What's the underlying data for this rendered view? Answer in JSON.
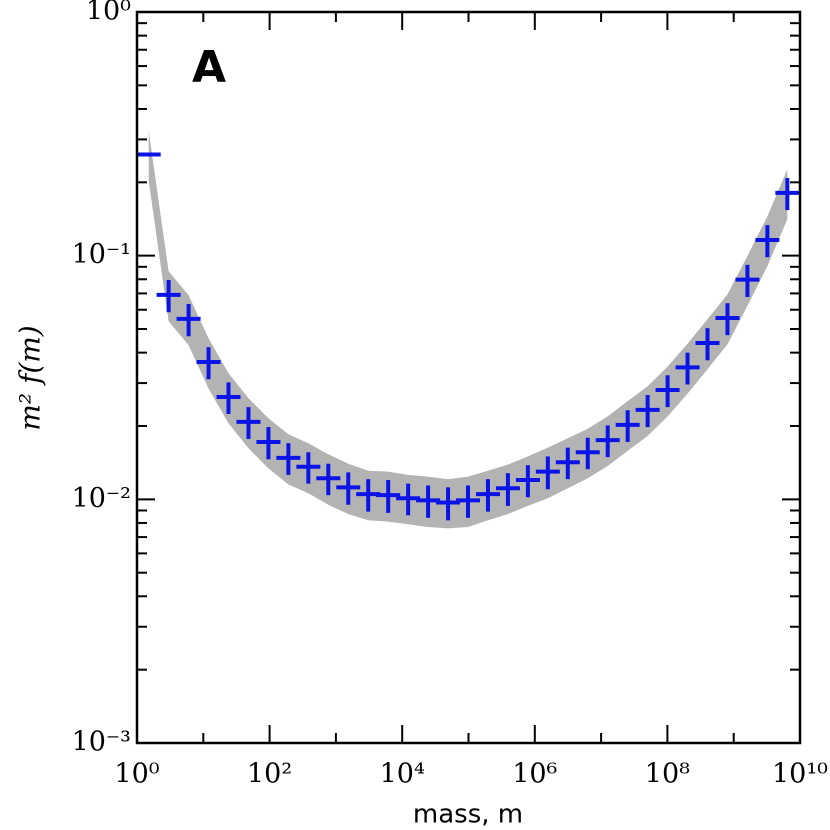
{
  "chart_data": {
    "type": "errorbar",
    "panel_label": "A",
    "xlabel": "mass, m",
    "ylabel": "m² f(m)",
    "log_x": true,
    "log_y": true,
    "xlim": [
      1,
      10000000000
    ],
    "ylim": [
      0.001,
      1
    ],
    "xticks": [
      {
        "value": 1,
        "label": "10⁰"
      },
      {
        "value": 100,
        "label": "10²"
      },
      {
        "value": 10000,
        "label": "10⁴"
      },
      {
        "value": 1000000,
        "label": "10⁶"
      },
      {
        "value": 100000000,
        "label": "10⁸"
      },
      {
        "value": 10000000000,
        "label": "10¹⁰"
      }
    ],
    "xminor": [
      10,
      1000,
      100000,
      10000000,
      1000000000
    ],
    "yticks": [
      {
        "value": 0.001,
        "label": "10⁻³"
      },
      {
        "value": 0.01,
        "label": "10⁻²"
      },
      {
        "value": 0.1,
        "label": "10⁻¹"
      },
      {
        "value": 1,
        "label": "10⁰"
      }
    ],
    "yminor": [
      0.002,
      0.003,
      0.004,
      0.005,
      0.006,
      0.007,
      0.008,
      0.009,
      0.02,
      0.03,
      0.04,
      0.05,
      0.06,
      0.07,
      0.08,
      0.09,
      0.2,
      0.3,
      0.4,
      0.5,
      0.6,
      0.7,
      0.8,
      0.9
    ],
    "color": "#0a14e6",
    "band_color": "#b3b3b3",
    "x": [
      1.5,
      3,
      6,
      12,
      24,
      48,
      96,
      192,
      384,
      768,
      1536,
      3072,
      6144,
      12288,
      24576,
      49152,
      98304,
      196608,
      393216,
      786432,
      1572864,
      3145728,
      6291456,
      12582912,
      25165824,
      50331648,
      100663296,
      201326592,
      402653184,
      805306368,
      1610612736,
      3221225472,
      6442450944
    ],
    "values": [
      0.26,
      0.069,
      0.055,
      0.0366,
      0.0263,
      0.0208,
      0.0172,
      0.0148,
      0.0136,
      0.0122,
      0.0112,
      0.0105,
      0.0104,
      0.0101,
      0.0099,
      0.0097,
      0.0099,
      0.0105,
      0.0111,
      0.012,
      0.013,
      0.0142,
      0.0156,
      0.0175,
      0.0202,
      0.0233,
      0.0281,
      0.0348,
      0.0438,
      0.0555,
      0.0797,
      0.116,
      0.181
    ],
    "errors": [
      0,
      0.0104,
      0.0083,
      0.0055,
      0.0039,
      0.0031,
      0.0026,
      0.0022,
      0.002,
      0.0018,
      0.0017,
      0.0016,
      0.0016,
      0.0015,
      0.0015,
      0.0015,
      0.0015,
      0.0016,
      0.0017,
      0.0018,
      0.002,
      0.0021,
      0.0023,
      0.0026,
      0.003,
      0.0035,
      0.0042,
      0.0052,
      0.0066,
      0.0083,
      0.012,
      0.0174,
      0.0272
    ],
    "band_upper": [
      0.325,
      0.0863,
      0.0688,
      0.0458,
      0.0329,
      0.026,
      0.0215,
      0.0185,
      0.017,
      0.0153,
      0.014,
      0.0131,
      0.013,
      0.0126,
      0.0124,
      0.0121,
      0.0124,
      0.0131,
      0.0139,
      0.015,
      0.0163,
      0.0178,
      0.0195,
      0.0219,
      0.0253,
      0.0291,
      0.0351,
      0.0435,
      0.0548,
      0.0694,
      0.0996,
      0.145,
      0.226
    ],
    "band_lower": [
      0.203,
      0.0538,
      0.0429,
      0.0285,
      0.0205,
      0.0162,
      0.0134,
      0.0115,
      0.0106,
      0.0095,
      0.0087,
      0.0082,
      0.0081,
      0.0079,
      0.0077,
      0.0076,
      0.0077,
      0.0082,
      0.0087,
      0.0094,
      0.0101,
      0.0111,
      0.0122,
      0.0137,
      0.0158,
      0.0182,
      0.0219,
      0.0271,
      0.0342,
      0.0433,
      0.0622,
      0.0905,
      0.141
    ]
  }
}
